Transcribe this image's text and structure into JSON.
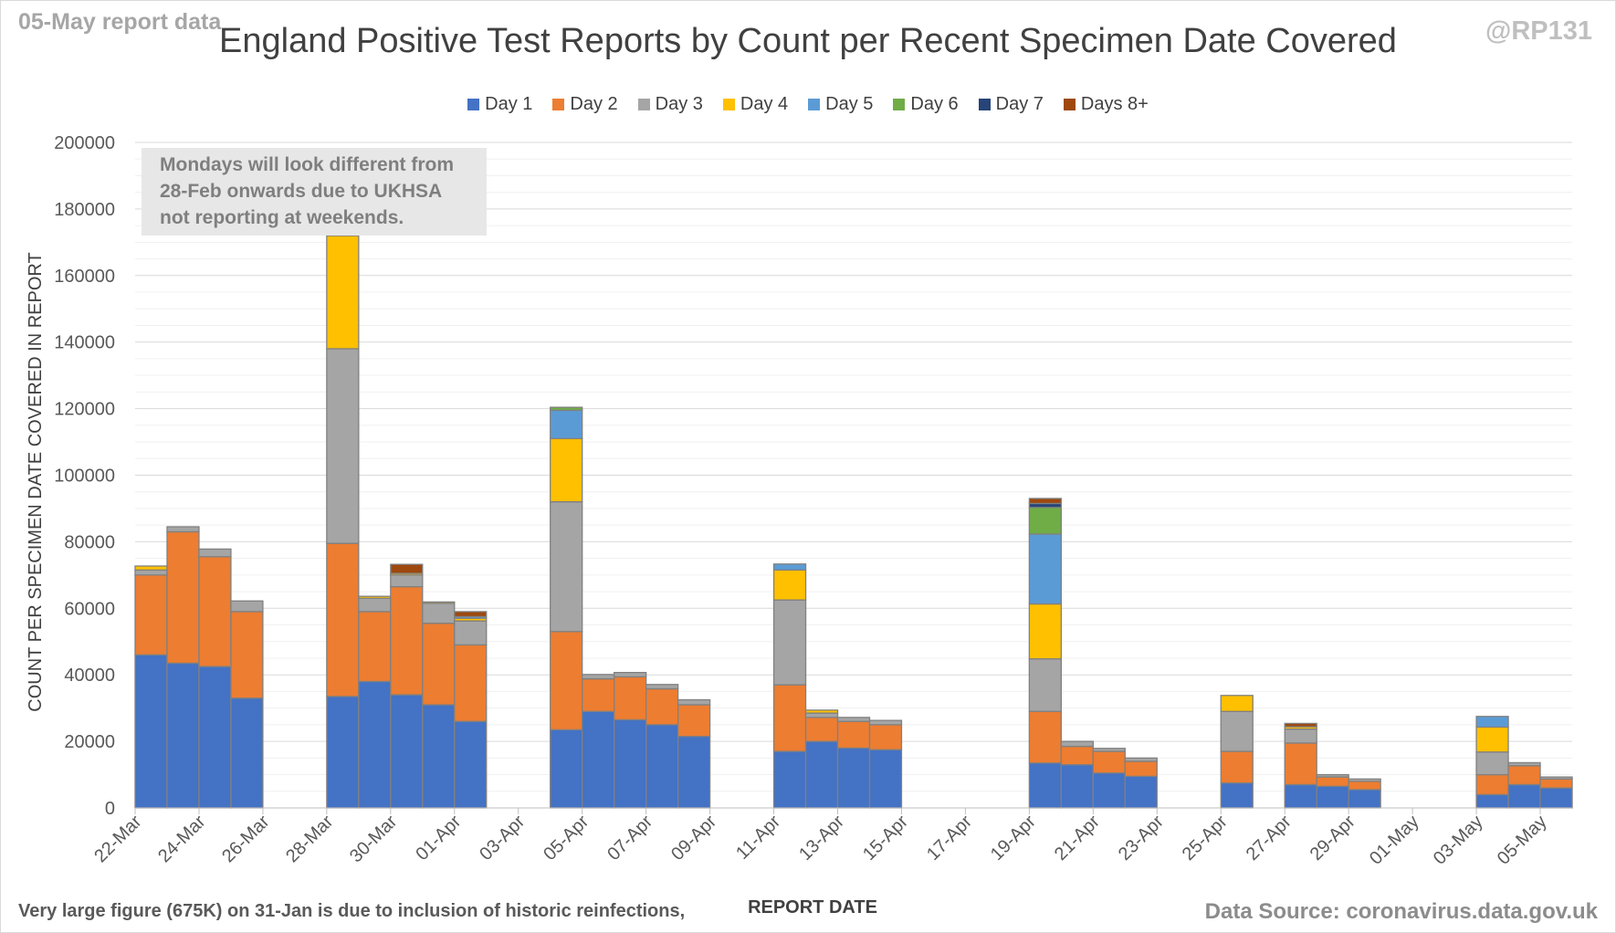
{
  "report_date_label": "05-May report data",
  "handle": "@RP131",
  "source_text": "Data Source: coronavirus.data.gov.uk",
  "footnote": "Very large figure (675K) on 31-Jan is due to inclusion of historic reinfections,",
  "note_lines": [
    "Mondays will look different from",
    "28-Feb onwards due to UKHSA",
    "not reporting at weekends."
  ],
  "chart_data": {
    "type": "bar",
    "stacked": true,
    "title": "England Positive Test Reports by Count per Recent Specimen Date Covered",
    "xlabel": "REPORT DATE",
    "ylabel": "COUNT PER SPECIMEN DATE COVERED IN REPORT",
    "ylim": [
      0,
      200000
    ],
    "y_ticks": [
      0,
      20000,
      40000,
      60000,
      80000,
      100000,
      120000,
      140000,
      160000,
      180000,
      200000
    ],
    "legend_position": "top",
    "x_tick_labels": [
      "22-Mar",
      "24-Mar",
      "26-Mar",
      "28-Mar",
      "30-Mar",
      "01-Apr",
      "03-Apr",
      "05-Apr",
      "07-Apr",
      "09-Apr",
      "11-Apr",
      "13-Apr",
      "15-Apr",
      "17-Apr",
      "19-Apr",
      "21-Apr",
      "23-Apr",
      "25-Apr",
      "27-Apr",
      "29-Apr",
      "01-May",
      "03-May",
      "05-May"
    ],
    "categories": [
      "22-Mar",
      "23-Mar",
      "24-Mar",
      "25-Mar",
      "26-Mar",
      "27-Mar",
      "28-Mar",
      "29-Mar",
      "30-Mar",
      "31-Mar",
      "01-Apr",
      "02-Apr",
      "03-Apr",
      "04-Apr",
      "05-Apr",
      "06-Apr",
      "07-Apr",
      "08-Apr",
      "09-Apr",
      "10-Apr",
      "11-Apr",
      "12-Apr",
      "13-Apr",
      "14-Apr",
      "15-Apr",
      "16-Apr",
      "17-Apr",
      "18-Apr",
      "19-Apr",
      "20-Apr",
      "21-Apr",
      "22-Apr",
      "23-Apr",
      "24-Apr",
      "25-Apr",
      "26-Apr",
      "27-Apr",
      "28-Apr",
      "29-Apr",
      "30-Apr",
      "01-May",
      "02-May",
      "03-May",
      "04-May",
      "05-May"
    ],
    "series": [
      {
        "name": "Day 1",
        "color": "#4472c4",
        "values": [
          46000,
          43500,
          42500,
          33000,
          0,
          0,
          33500,
          38000,
          34000,
          31000,
          26000,
          0,
          0,
          23500,
          29000,
          26500,
          25000,
          21500,
          0,
          0,
          17000,
          20000,
          18000,
          17500,
          0,
          0,
          0,
          0,
          13500,
          13000,
          10500,
          9500,
          0,
          0,
          7500,
          0,
          7000,
          6500,
          5500,
          0,
          0,
          0,
          4000,
          7000,
          6000
        ]
      },
      {
        "name": "Day 2",
        "color": "#ed7d31",
        "values": [
          24000,
          39500,
          33000,
          26000,
          0,
          0,
          46000,
          21000,
          32500,
          24500,
          23000,
          0,
          0,
          29500,
          9800,
          12900,
          10800,
          9500,
          0,
          0,
          20000,
          7200,
          8000,
          7500,
          0,
          0,
          0,
          0,
          15500,
          5500,
          6500,
          4500,
          0,
          0,
          9500,
          0,
          12500,
          2800,
          2500,
          0,
          0,
          0,
          6000,
          5700,
          2700
        ]
      },
      {
        "name": "Day 3",
        "color": "#a5a5a5",
        "values": [
          1500,
          1500,
          2300,
          3200,
          0,
          0,
          58500,
          4000,
          3500,
          6000,
          7200,
          0,
          0,
          39000,
          1300,
          1300,
          1300,
          1500,
          0,
          0,
          25500,
          1300,
          1200,
          1300,
          0,
          0,
          0,
          0,
          15800,
          1500,
          900,
          1000,
          0,
          0,
          12000,
          0,
          4200,
          700,
          700,
          0,
          0,
          0,
          6800,
          900,
          600
        ]
      },
      {
        "name": "Day 4",
        "color": "#ffc000",
        "values": [
          1200,
          0,
          0,
          0,
          0,
          0,
          34000,
          600,
          500,
          400,
          800,
          0,
          0,
          19000,
          0,
          0,
          0,
          0,
          0,
          0,
          9000,
          900,
          0,
          0,
          0,
          0,
          0,
          0,
          16500,
          0,
          0,
          0,
          0,
          0,
          4800,
          0,
          700,
          0,
          0,
          0,
          0,
          0,
          7500,
          0,
          0
        ]
      },
      {
        "name": "Day 5",
        "color": "#5b9bd5",
        "values": [
          0,
          0,
          0,
          0,
          0,
          0,
          8000,
          0,
          0,
          0,
          500,
          0,
          0,
          8500,
          0,
          0,
          0,
          0,
          0,
          0,
          1800,
          0,
          0,
          0,
          0,
          0,
          0,
          0,
          21000,
          0,
          0,
          0,
          0,
          0,
          0,
          0,
          0,
          0,
          0,
          0,
          0,
          0,
          3200,
          0,
          0
        ]
      },
      {
        "name": "Day 6",
        "color": "#70ad47",
        "values": [
          0,
          0,
          0,
          0,
          0,
          0,
          0,
          0,
          0,
          0,
          0,
          0,
          0,
          900,
          0,
          0,
          0,
          0,
          0,
          0,
          0,
          0,
          0,
          0,
          0,
          0,
          0,
          0,
          8000,
          0,
          0,
          0,
          0,
          0,
          0,
          0,
          0,
          0,
          0,
          0,
          0,
          0,
          0,
          0,
          0
        ]
      },
      {
        "name": "Day 7",
        "color": "#264478",
        "values": [
          0,
          0,
          0,
          0,
          0,
          0,
          0,
          0,
          0,
          0,
          0,
          0,
          0,
          0,
          0,
          0,
          0,
          0,
          0,
          0,
          0,
          0,
          0,
          0,
          0,
          0,
          0,
          0,
          1200,
          0,
          0,
          0,
          0,
          0,
          0,
          0,
          0,
          0,
          0,
          0,
          0,
          0,
          0,
          0,
          0
        ]
      },
      {
        "name": "Days 8+",
        "color": "#9e480e",
        "values": [
          0,
          0,
          0,
          0,
          0,
          0,
          0,
          0,
          2700,
          0,
          1500,
          0,
          0,
          0,
          0,
          0,
          0,
          0,
          0,
          0,
          0,
          0,
          0,
          0,
          0,
          0,
          0,
          0,
          1500,
          0,
          0,
          0,
          0,
          0,
          0,
          0,
          1000,
          0,
          0,
          0,
          0,
          0,
          0,
          0,
          0
        ]
      }
    ]
  }
}
